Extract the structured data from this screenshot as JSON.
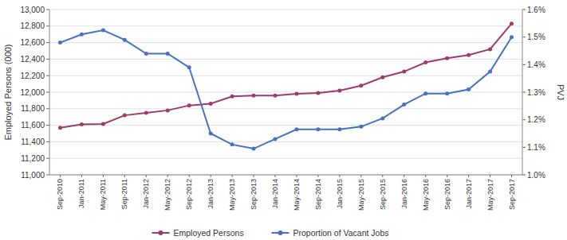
{
  "chart_data": {
    "type": "line",
    "categories": [
      "Sep-2010",
      "Jan-2011",
      "May-2011",
      "Sep-2011",
      "Jan-2012",
      "May-2012",
      "Sep-2012",
      "Jan-2013",
      "May-2013",
      "Sep-2013",
      "Jan-2014",
      "May-2014",
      "Sep-2014",
      "Jan-2015",
      "May-2015",
      "Sep-2015",
      "Jan-2016",
      "May-2016",
      "Sep-2016",
      "Jan-2017",
      "May-2017",
      "Sep-2017"
    ],
    "series": [
      {
        "name": "Employed Persons",
        "color": "#9E3B6B",
        "marker": "circle",
        "values": [
          11570,
          11610,
          11615,
          11720,
          11750,
          11780,
          11840,
          11860,
          11950,
          11960,
          11960,
          11980,
          11990,
          12020,
          12080,
          12180,
          12250,
          12360,
          12410,
          12450,
          12520,
          12830
        ]
      },
      {
        "name": "Proportion of Vacant Jobs",
        "color": "#4472C4",
        "marker": "circle",
        "axis": "y2",
        "values": [
          1.48,
          1.51,
          1.525,
          1.49,
          1.44,
          1.44,
          1.39,
          1.15,
          1.11,
          1.095,
          1.13,
          1.165,
          1.165,
          1.165,
          1.175,
          1.205,
          1.255,
          1.295,
          1.295,
          1.31,
          1.375,
          1.5
        ]
      }
    ],
    "ylabel": "Employed Persons (000)",
    "y2label": "PVJ",
    "ylim": [
      11000,
      13000
    ],
    "yticks": [
      {
        "value": 11000,
        "label": "11,000"
      },
      {
        "value": 11200,
        "label": "11,200"
      },
      {
        "value": 11400,
        "label": "11,400"
      },
      {
        "value": 11600,
        "label": "11,600"
      },
      {
        "value": 11800,
        "label": "11,800"
      },
      {
        "value": 12000,
        "label": "12,000"
      },
      {
        "value": 12200,
        "label": "12,200"
      },
      {
        "value": 12400,
        "label": "12,400"
      },
      {
        "value": 12600,
        "label": "12,600"
      },
      {
        "value": 12800,
        "label": "12,800"
      },
      {
        "value": 13000,
        "label": "13,000"
      }
    ],
    "y2lim": [
      1.0,
      1.6
    ],
    "y2ticks": [
      {
        "value": 1.0,
        "label": "1.0%"
      },
      {
        "value": 1.1,
        "label": "1.1%"
      },
      {
        "value": 1.2,
        "label": "1.2%"
      },
      {
        "value": 1.3,
        "label": "1.3%"
      },
      {
        "value": 1.4,
        "label": "1.4%"
      },
      {
        "value": 1.5,
        "label": "1.5%"
      },
      {
        "value": 1.6,
        "label": "1.6%"
      }
    ],
    "grid": true,
    "legend": "bottom"
  }
}
